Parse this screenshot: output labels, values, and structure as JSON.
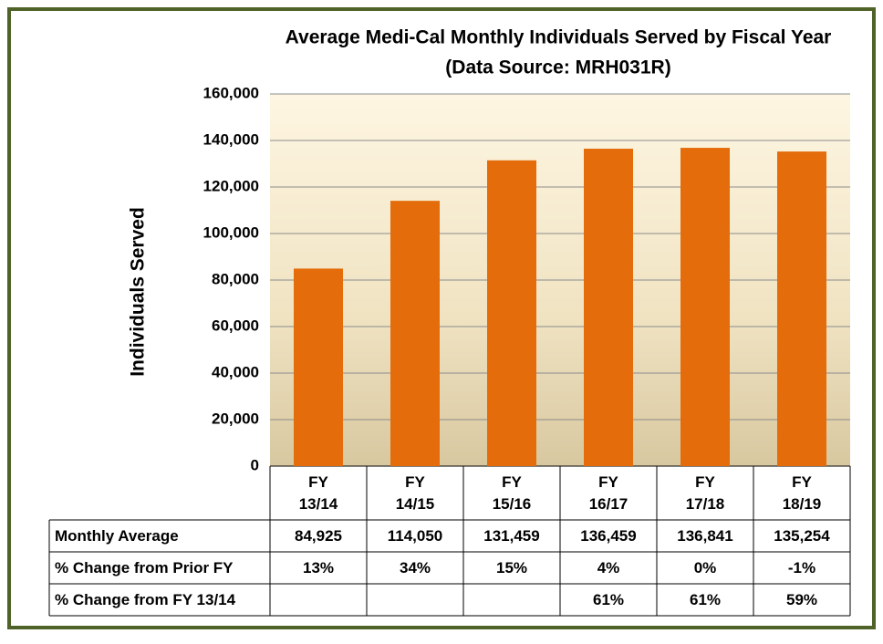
{
  "chart_data": {
    "type": "bar",
    "title": "Average Medi-Cal Monthly Individuals Served by Fiscal Year",
    "subtitle": "(Data Source: MRH031R)",
    "ylabel": "Individuals Served",
    "categories": [
      "FY 13/14",
      "FY 14/15",
      "FY 15/16",
      "FY 16/17",
      "FY 17/18",
      "FY 18/19"
    ],
    "series": [
      {
        "name": "Monthly Average",
        "color": "#e46c0a",
        "values": [
          84925,
          114050,
          131459,
          136459,
          136841,
          135254
        ],
        "value_labels": [
          "84,925",
          "114,050",
          "131,459",
          "136,459",
          "136,841",
          "135,254"
        ]
      }
    ],
    "ylim": [
      0,
      160000
    ],
    "yticks": [
      0,
      {
        "value": 20000,
        "label": "20,000"
      },
      {
        "value": 40000,
        "label": "40,000"
      },
      {
        "value": 60000,
        "label": "60,000"
      },
      {
        "value": 80000,
        "label": "80,000"
      },
      {
        "value": 100000,
        "label": "100,000"
      },
      {
        "value": 120000,
        "label": "120,000"
      },
      {
        "value": 140000,
        "label": "140,000"
      },
      {
        "value": 160000,
        "label": "160,000"
      }
    ],
    "grid": true,
    "table_rows": [
      {
        "label": "% Change from Prior FY",
        "cells": [
          "13%",
          "34%",
          "15%",
          "4%",
          "0%",
          "-1%"
        ]
      },
      {
        "label": "% Change from FY 13/14",
        "cells": [
          null,
          null,
          null,
          "61%",
          "61%",
          "59%"
        ]
      }
    ]
  }
}
